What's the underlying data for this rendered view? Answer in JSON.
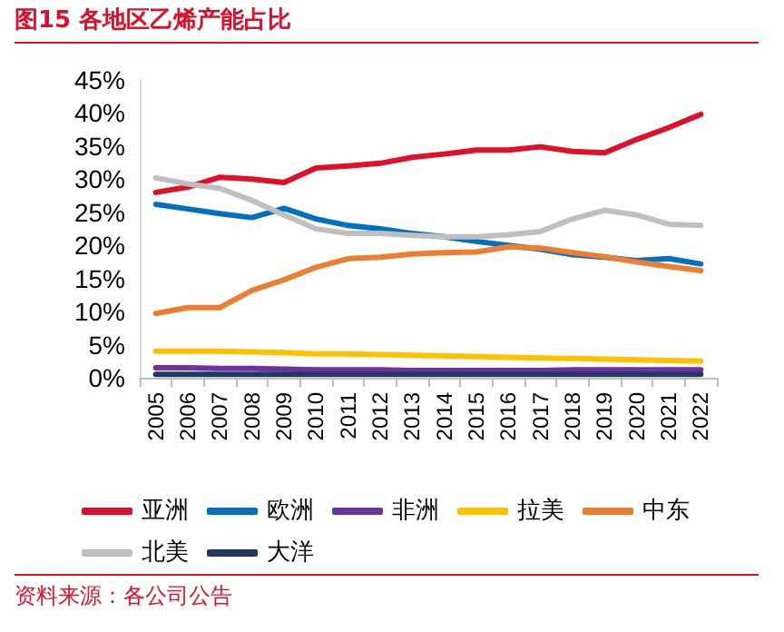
{
  "chart_data": {
    "type": "line",
    "title": "图15  各地区乙烯产能占比",
    "annotations": [
      "资料来源：各公司公告"
    ],
    "categories": [
      "2005",
      "2006",
      "2007",
      "2008",
      "2009",
      "2010",
      "2011",
      "2012",
      "2013",
      "2014",
      "2015",
      "2016",
      "2017",
      "2018",
      "2019",
      "2020",
      "2021",
      "2022"
    ],
    "series": [
      {
        "name": "亚洲",
        "color": "#e0102a",
        "values": [
          28,
          28.8,
          30.3,
          30,
          29.5,
          31.7,
          32,
          32.4,
          33.3,
          33.8,
          34.4,
          34.4,
          34.9,
          34.2,
          34,
          36,
          37.8,
          39.8
        ]
      },
      {
        "name": "欧洲",
        "color": "#0070c0",
        "values": [
          26.2,
          25.5,
          24.8,
          24.2,
          25.6,
          24,
          23,
          22.5,
          21.8,
          21.3,
          20.6,
          20,
          19.4,
          18.6,
          18.2,
          17.7,
          18,
          17.2
        ]
      },
      {
        "name": "非洲",
        "color": "#7030a0",
        "values": [
          1.5,
          1.5,
          1.4,
          1.4,
          1.3,
          1.2,
          1.2,
          1.2,
          1.1,
          1.1,
          1.1,
          1.1,
          1.1,
          1.2,
          1.2,
          1.2,
          1.2,
          1.2
        ]
      },
      {
        "name": "拉美",
        "color": "#ffc000",
        "values": [
          4,
          4,
          4,
          3.9,
          3.8,
          3.6,
          3.6,
          3.5,
          3.4,
          3.3,
          3.2,
          3.1,
          3,
          2.9,
          2.8,
          2.7,
          2.6,
          2.5
        ]
      },
      {
        "name": "中东",
        "color": "#ed7d31",
        "values": [
          9.7,
          10.6,
          10.6,
          13.2,
          14.8,
          16.7,
          18,
          18.2,
          18.7,
          18.9,
          19,
          19.8,
          19.6,
          18.9,
          18.3,
          17.5,
          16.8,
          16.2
        ]
      },
      {
        "name": "北美",
        "color": "#bfbfbf",
        "values": [
          30.2,
          29.3,
          28.6,
          26.8,
          24.6,
          22.5,
          21.8,
          21.8,
          21.5,
          21.3,
          21.3,
          21.6,
          22.1,
          24,
          25.3,
          24.6,
          23.2,
          23
        ]
      },
      {
        "name": "大洋",
        "color": "#203864",
        "values": [
          0.5,
          0.5,
          0.5,
          0.5,
          0.5,
          0.5,
          0.5,
          0.5,
          0.5,
          0.5,
          0.5,
          0.5,
          0.5,
          0.5,
          0.5,
          0.5,
          0.5,
          0.5
        ]
      }
    ],
    "ylim": [
      0,
      45
    ],
    "yticks": [
      {
        "value": 0,
        "label": "0%"
      },
      {
        "value": 5,
        "label": "5%"
      },
      {
        "value": 10,
        "label": "10%"
      },
      {
        "value": 15,
        "label": "15%"
      },
      {
        "value": 20,
        "label": "20%"
      },
      {
        "value": 25,
        "label": "25%"
      },
      {
        "value": 30,
        "label": "30%"
      },
      {
        "value": 35,
        "label": "35%"
      },
      {
        "value": 40,
        "label": "40%"
      },
      {
        "value": 45,
        "label": "45%"
      }
    ],
    "grid": false,
    "legend": "bottom",
    "marker": "none",
    "line_style": "solid"
  }
}
